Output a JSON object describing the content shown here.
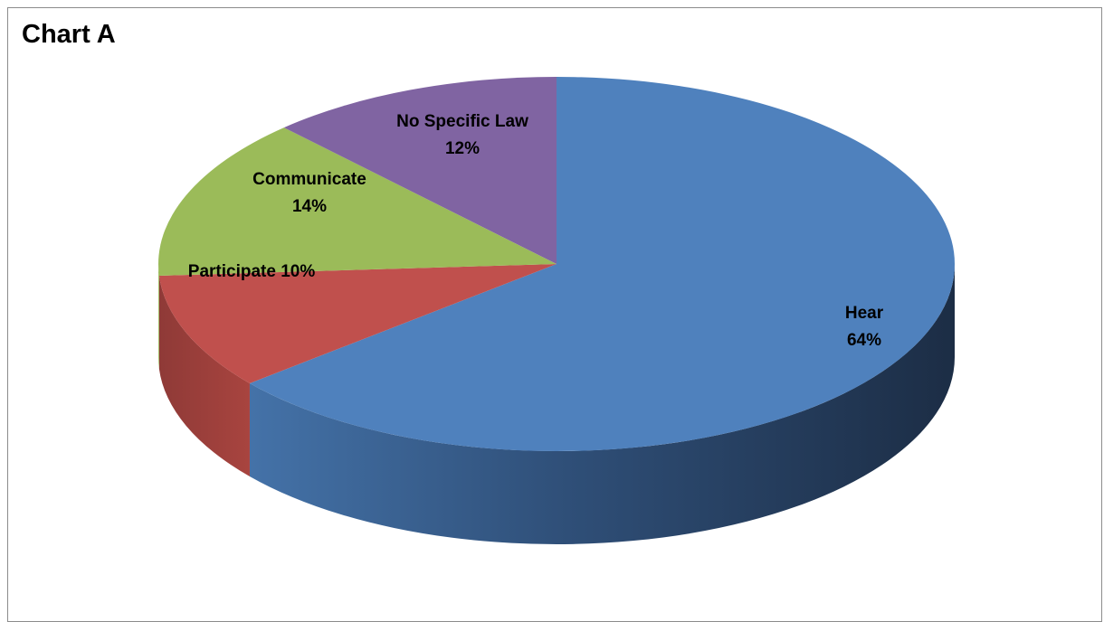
{
  "chart_data": {
    "type": "pie",
    "title": "Chart A",
    "slices": [
      {
        "label": "Hear",
        "value": 64,
        "display": "64%",
        "color": "#4f81bd"
      },
      {
        "label": "Participate",
        "value": 10,
        "display": "10%",
        "color": "#c0504d"
      },
      {
        "label": "Communicate",
        "value": 14,
        "display": "14%",
        "color": "#9bbb59"
      },
      {
        "label": "No Specific Law",
        "value": 12,
        "display": "12%",
        "color": "#8064a2"
      }
    ],
    "legend": "none",
    "style": "3d"
  }
}
